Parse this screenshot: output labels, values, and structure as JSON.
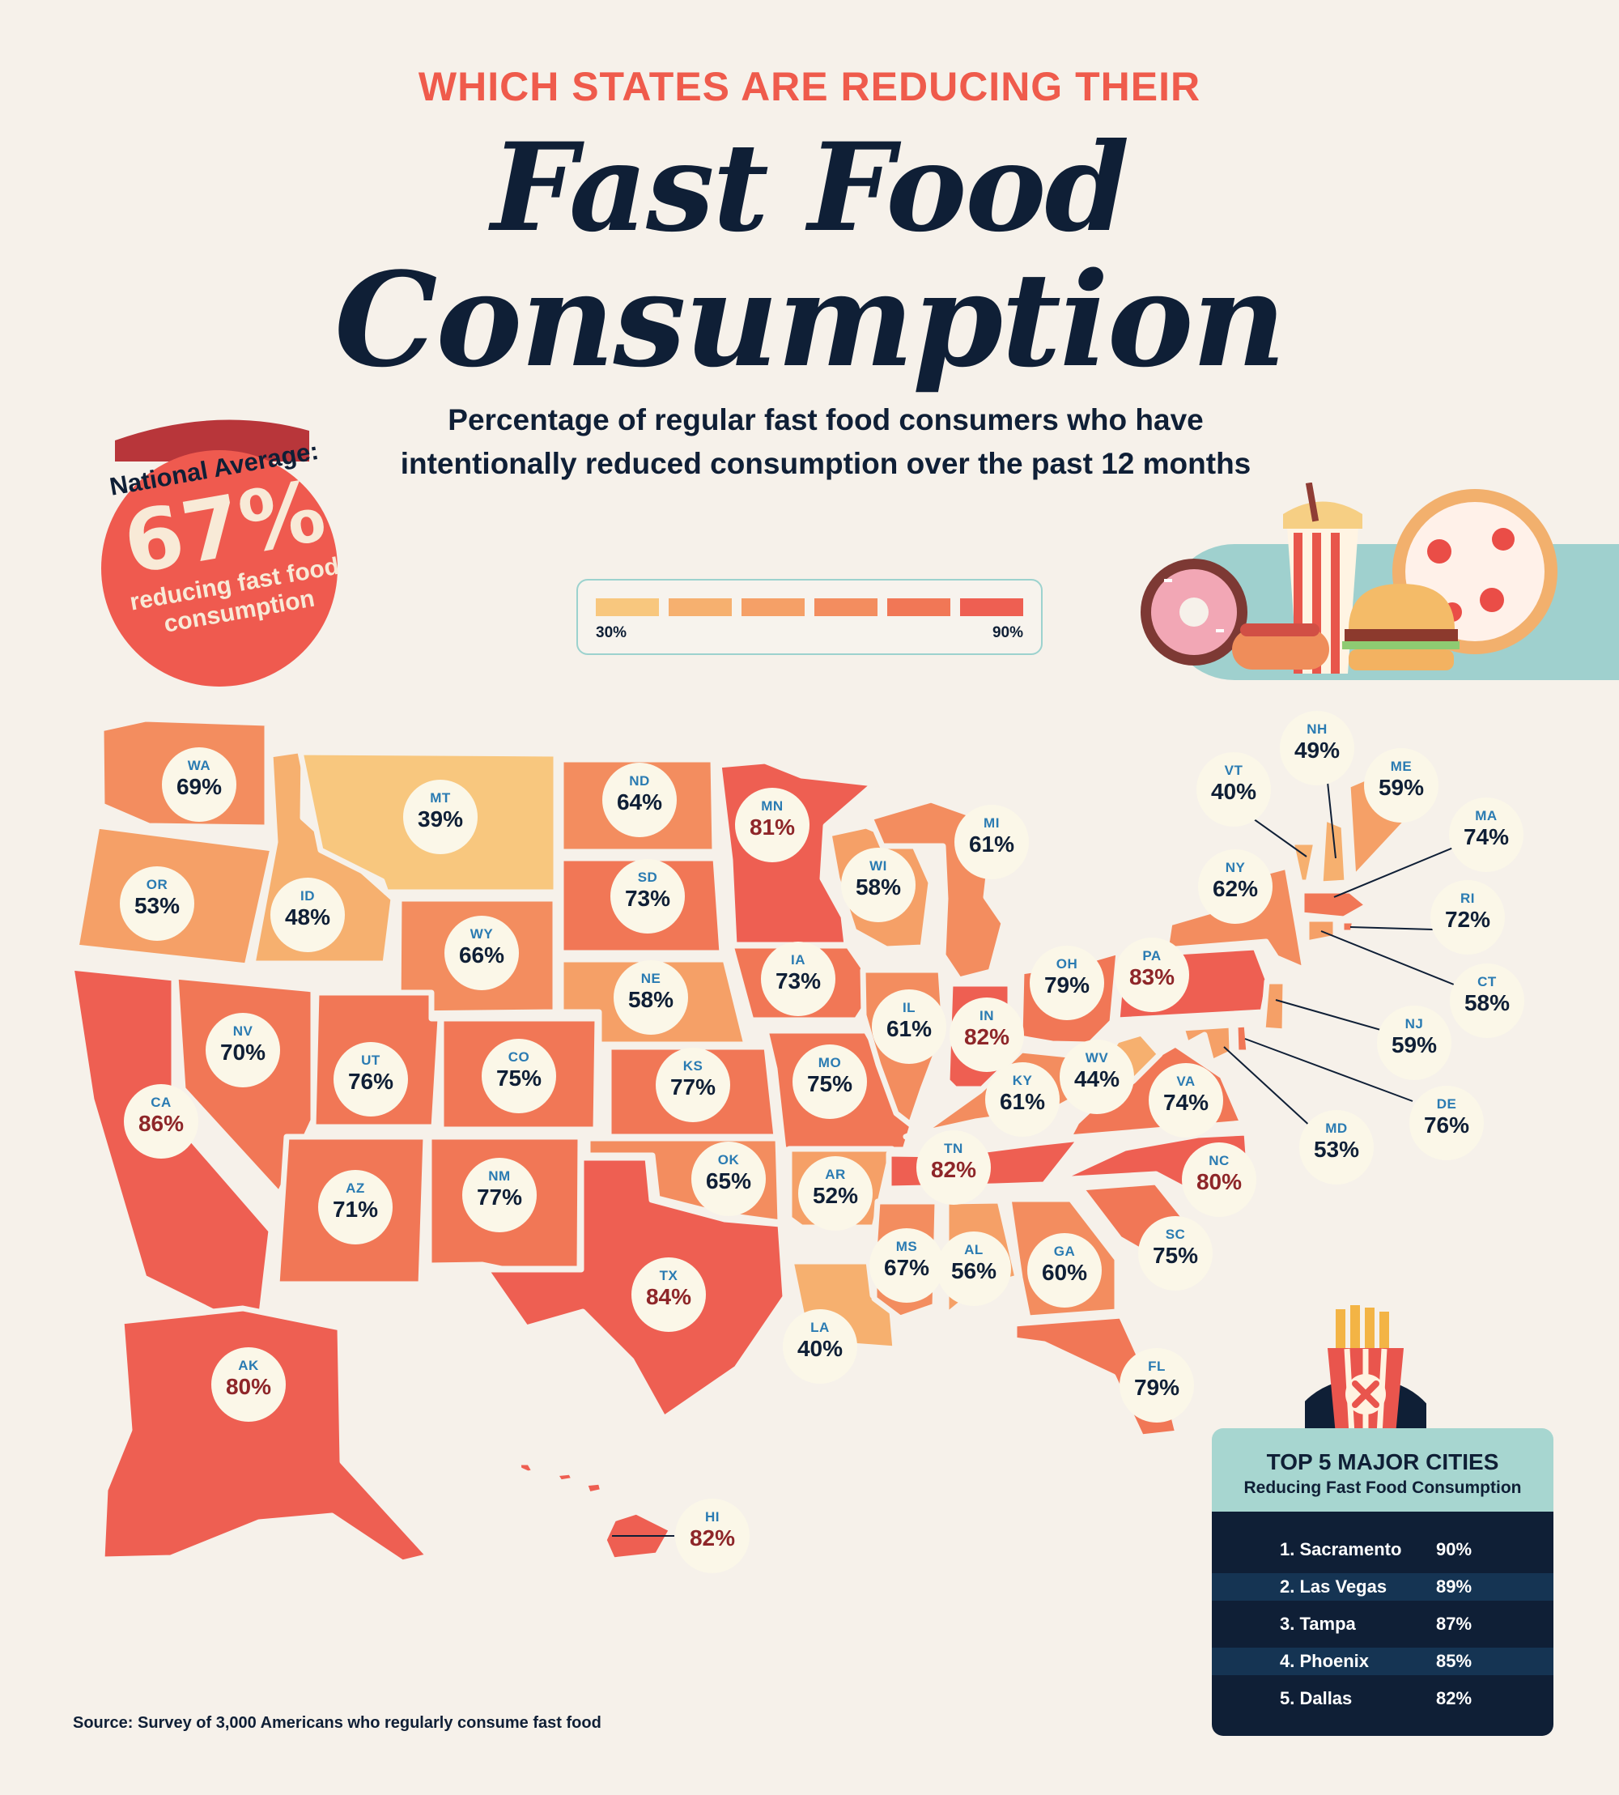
{
  "header": {
    "eyebrow": "WHICH STATES ARE REDUCING THEIR",
    "title_line1": "Fast Food",
    "title_line2": "Consumption",
    "subtitle_line1": "Percentage of regular fast food consumers who have",
    "subtitle_line2": "intentionally reduced consumption over the past 12 months"
  },
  "badge": {
    "label": "National Average:",
    "value": "67%",
    "caption_line1": "reducing fast food",
    "caption_line2": "consumption"
  },
  "legend": {
    "min": "30%",
    "max": "90%",
    "colors": [
      "#f8c77e",
      "#f6b06f",
      "#f5a067",
      "#f38d5f",
      "#f17756",
      "#ee5f52"
    ]
  },
  "map": {
    "states": [
      {
        "code": "WA",
        "value": "69%"
      },
      {
        "code": "OR",
        "value": "53%"
      },
      {
        "code": "CA",
        "value": "86%"
      },
      {
        "code": "ID",
        "value": "48%"
      },
      {
        "code": "NV",
        "value": "70%"
      },
      {
        "code": "MT",
        "value": "39%"
      },
      {
        "code": "WY",
        "value": "66%"
      },
      {
        "code": "UT",
        "value": "76%"
      },
      {
        "code": "AZ",
        "value": "71%"
      },
      {
        "code": "CO",
        "value": "75%"
      },
      {
        "code": "NM",
        "value": "77%"
      },
      {
        "code": "ND",
        "value": "64%"
      },
      {
        "code": "SD",
        "value": "73%"
      },
      {
        "code": "NE",
        "value": "58%"
      },
      {
        "code": "KS",
        "value": "77%"
      },
      {
        "code": "OK",
        "value": "65%"
      },
      {
        "code": "TX",
        "value": "84%"
      },
      {
        "code": "MN",
        "value": "81%"
      },
      {
        "code": "IA",
        "value": "73%"
      },
      {
        "code": "MO",
        "value": "75%"
      },
      {
        "code": "AR",
        "value": "52%"
      },
      {
        "code": "LA",
        "value": "40%"
      },
      {
        "code": "WI",
        "value": "58%"
      },
      {
        "code": "MI",
        "value": "61%"
      },
      {
        "code": "IL",
        "value": "61%"
      },
      {
        "code": "IN",
        "value": "82%"
      },
      {
        "code": "OH",
        "value": "79%"
      },
      {
        "code": "KY",
        "value": "61%"
      },
      {
        "code": "TN",
        "value": "82%"
      },
      {
        "code": "MS",
        "value": "67%"
      },
      {
        "code": "AL",
        "value": "56%"
      },
      {
        "code": "GA",
        "value": "60%"
      },
      {
        "code": "FL",
        "value": "79%"
      },
      {
        "code": "SC",
        "value": "75%"
      },
      {
        "code": "NC",
        "value": "80%"
      },
      {
        "code": "VA",
        "value": "74%"
      },
      {
        "code": "WV",
        "value": "44%"
      },
      {
        "code": "PA",
        "value": "83%"
      },
      {
        "code": "NY",
        "value": "62%"
      },
      {
        "code": "VT",
        "value": "40%"
      },
      {
        "code": "NH",
        "value": "49%"
      },
      {
        "code": "ME",
        "value": "59%"
      },
      {
        "code": "MA",
        "value": "74%"
      },
      {
        "code": "RI",
        "value": "72%"
      },
      {
        "code": "CT",
        "value": "58%"
      },
      {
        "code": "NJ",
        "value": "59%"
      },
      {
        "code": "DE",
        "value": "76%"
      },
      {
        "code": "MD",
        "value": "53%"
      },
      {
        "code": "AK",
        "value": "80%"
      },
      {
        "code": "HI",
        "value": "82%"
      }
    ]
  },
  "cities": {
    "title": "TOP 5 MAJOR CITIES",
    "subtitle": "Reducing Fast Food Consumption",
    "rows": [
      {
        "name": "1. Sacramento",
        "value": "90%"
      },
      {
        "name": "2. Las Vegas",
        "value": "89%"
      },
      {
        "name": "3. Tampa",
        "value": "87%"
      },
      {
        "name": "4. Phoenix",
        "value": "85%"
      },
      {
        "name": "5. Dallas",
        "value": "82%"
      }
    ]
  },
  "footer": {
    "source": "Source: Survey of 3,000 Americans who regularly consume fast food"
  }
}
